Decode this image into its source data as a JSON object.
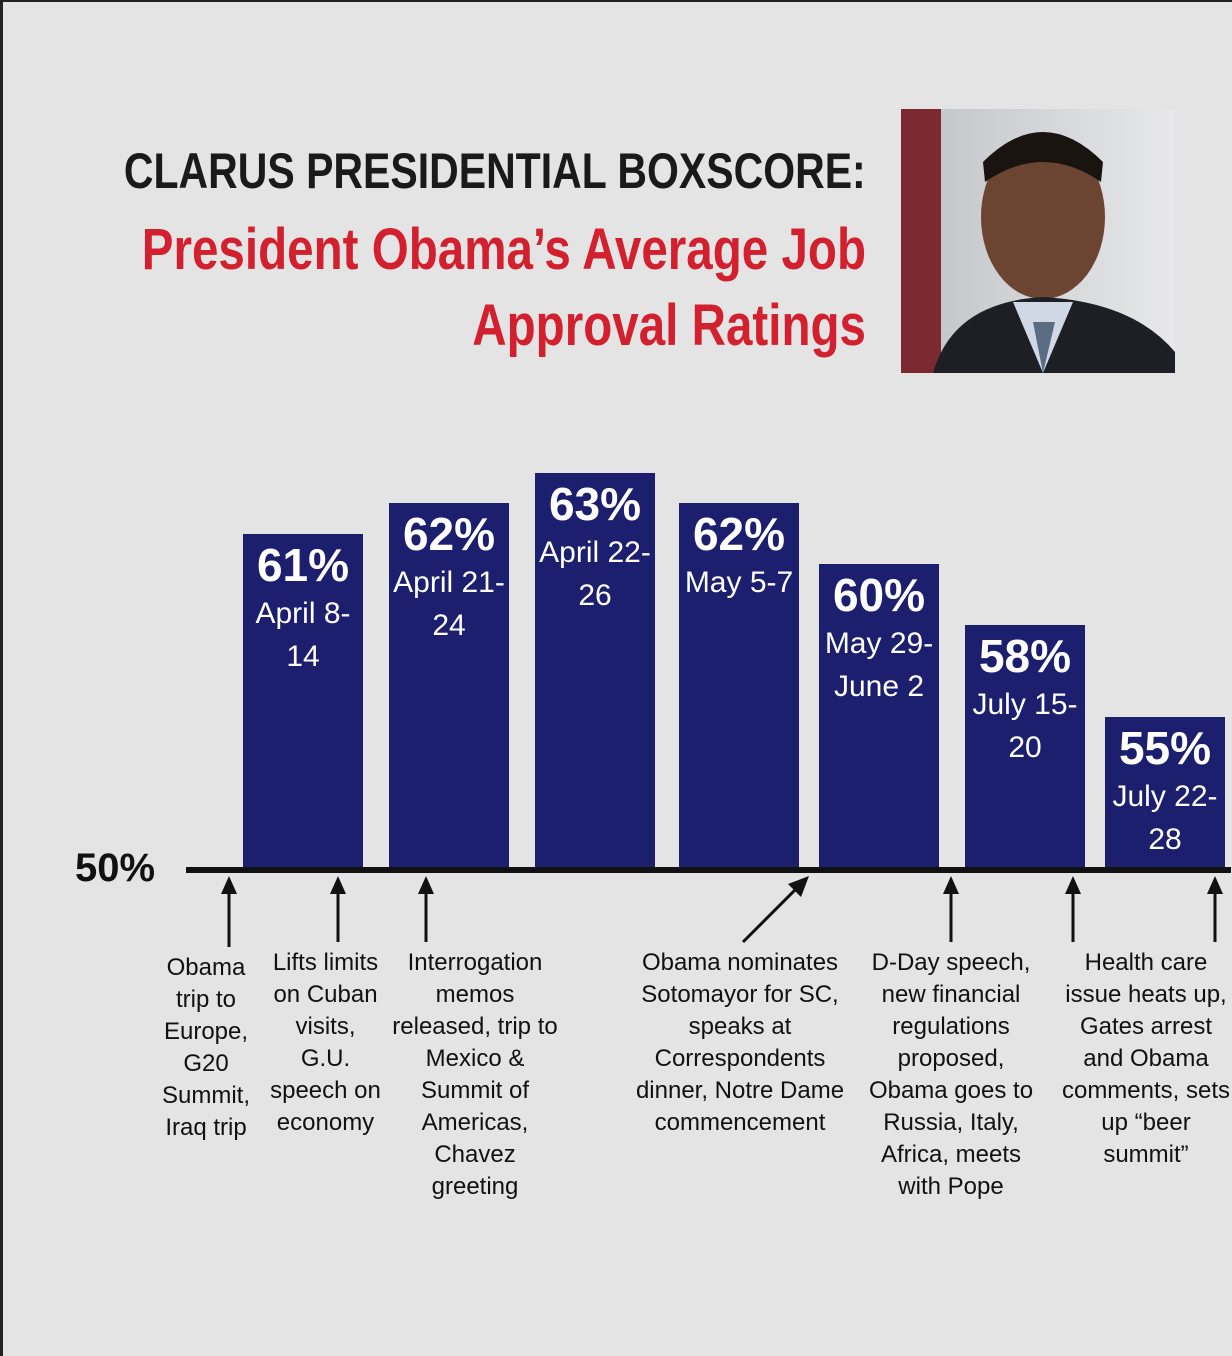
{
  "chart_data": {
    "type": "bar",
    "title": "CLARUS PRESIDENTIAL BOXSCORE:",
    "subtitle": "President Obama’s Average Job Approval Ratings",
    "categories": [
      "April 8-14",
      "April 21-24",
      "April 22-26",
      "May 5-7",
      "May 29-June 2",
      "July 15-20",
      "July 22-28"
    ],
    "values": [
      61,
      62,
      63,
      62,
      60,
      58,
      55
    ],
    "value_labels": [
      "61%",
      "62%",
      "63%",
      "62%",
      "60%",
      "58%",
      "55%"
    ],
    "color": "#1c1f6e",
    "ylim": [
      50,
      64
    ],
    "yticks": [
      {
        "value": 50,
        "label": "50%"
      }
    ],
    "annotations": [
      "Obama trip to Europe, G20 Summit, Iraq trip",
      "Lifts limits on Cuban visits, G.U. speech on economy",
      "Interrogation memos released, trip to Mexico & Summit of Americas, Chavez greeting",
      "Obama nominates Sotomayor for SC, speaks at Correspondents dinner, Notre Dame commencement",
      "D-Day speech, new financial regulations proposed, Obama goes to Russia, Italy, Africa, meets with Pope",
      "Health care issue heats up, Gates arrest and Obama comments, sets up “beer summit”"
    ]
  }
}
